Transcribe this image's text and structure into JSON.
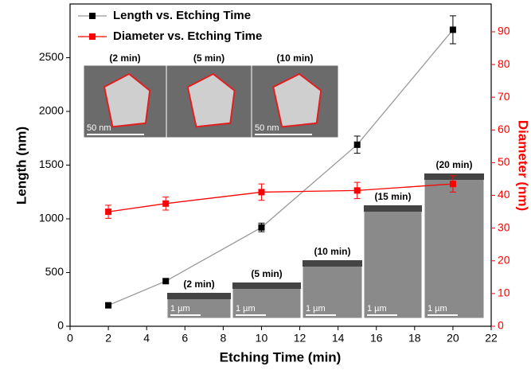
{
  "chart_data": {
    "type": "line",
    "x": [
      2,
      5,
      10,
      15,
      20
    ],
    "xlabel": "Etching Time (min)",
    "ylabel": "Length (nm)",
    "y2label": "Diameter (nm)",
    "xlim": [
      0,
      22
    ],
    "xticks": [
      0,
      2,
      4,
      6,
      8,
      10,
      12,
      14,
      16,
      18,
      20,
      22
    ],
    "ylim": [
      0,
      3000
    ],
    "yticks": [
      0,
      500,
      1000,
      1500,
      2000,
      2500
    ],
    "y2lim": [
      0,
      98.5
    ],
    "y2ticks": [
      0,
      10,
      20,
      30,
      40,
      50,
      60,
      70,
      80,
      90
    ],
    "legend": "upper left",
    "series": [
      {
        "name": "Length vs. Etching Time",
        "color": "#000000",
        "line_color": "#999999",
        "values": [
          195,
          420,
          920,
          1690,
          2760
        ],
        "errors": [
          20,
          20,
          40,
          80,
          130
        ]
      },
      {
        "name": "Diameter vs. Etching Time",
        "color": "#ff0000",
        "line_color": "#ff0000",
        "axis": "y2",
        "values": [
          35,
          37.5,
          41,
          41.5,
          43.5
        ],
        "errors": [
          2,
          2,
          2.5,
          2.5,
          2.5
        ]
      }
    ],
    "insets": [
      {
        "label": "(2 min)",
        "scale": "50 nm"
      },
      {
        "label": "(5 min)"
      },
      {
        "label": "(10 min)",
        "scale": "50 nm"
      },
      {
        "label": "(2 min)",
        "scale": "1 µm"
      },
      {
        "label": "(5 min)",
        "scale": "1 µm"
      },
      {
        "label": "(10 min)",
        "scale": "1 µm"
      },
      {
        "label": "(15 min)",
        "scale": "1 µm"
      },
      {
        "label": "(20 min)",
        "scale": "1 µm"
      }
    ]
  }
}
